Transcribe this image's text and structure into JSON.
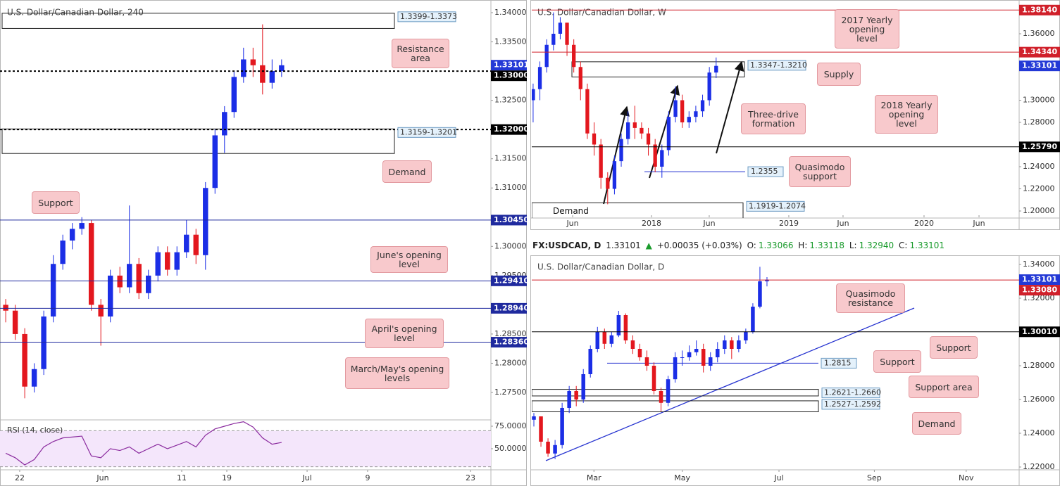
{
  "chart_data": [
    {
      "type": "candlestick",
      "title": "U.S. Dollar/Canadian Dollar, 240",
      "xlim": [
        -0.6,
        51
      ],
      "xticks": [
        {
          "value": 1.47,
          "label": "22"
        },
        {
          "value": 10.21,
          "label": "Jun"
        },
        {
          "value": 18.5,
          "label": "11"
        },
        {
          "value": 23.24,
          "label": "19"
        },
        {
          "value": 31.68,
          "label": "Jul"
        },
        {
          "value": 38.04,
          "label": "9"
        },
        {
          "value": 48.85,
          "label": "23"
        }
      ],
      "ylim": [
        1.270306,
        1.342167
      ],
      "yticks": [
        {
          "value": 1.34,
          "label": "1.34000"
        },
        {
          "value": 1.335,
          "label": "1.33500"
        },
        {
          "value": 1.325,
          "label": "1.32500"
        },
        {
          "value": 1.315,
          "label": "1.31500"
        },
        {
          "value": 1.31,
          "label": "1.31000"
        },
        {
          "value": 1.3,
          "label": "1.30000"
        },
        {
          "value": 1.295,
          "label": "1.29500"
        },
        {
          "value": 1.285,
          "label": "1.28500"
        },
        {
          "value": 1.28,
          "label": "1.28000"
        },
        {
          "value": 1.275,
          "label": "1.27500"
        }
      ],
      "up_color": "#1b2ee6",
      "down_color": "#e3171e",
      "open": [
        1.29,
        1.289,
        1.285,
        1.276,
        1.279,
        1.288,
        1.297,
        1.301,
        1.303,
        1.304,
        1.29,
        1.288,
        1.295,
        1.293,
        1.297,
        1.292,
        1.295,
        1.299,
        1.296,
        1.299,
        1.302,
        1.2985,
        1.31,
        1.319,
        1.323,
        1.329,
        1.332,
        1.331,
        1.328,
        1.33
      ],
      "high": [
        1.291,
        1.29,
        1.286,
        1.28,
        1.289,
        1.2985,
        1.302,
        1.304,
        1.305,
        1.3045,
        1.291,
        1.296,
        1.2965,
        1.307,
        1.298,
        1.296,
        1.3,
        1.3,
        1.3,
        1.3045,
        1.303,
        1.311,
        1.32,
        1.324,
        1.33,
        1.334,
        1.334,
        1.338,
        1.332,
        1.332
      ],
      "low": [
        1.287,
        1.284,
        1.274,
        1.275,
        1.278,
        1.287,
        1.296,
        1.2995,
        1.302,
        1.289,
        1.283,
        1.287,
        1.292,
        1.292,
        1.291,
        1.291,
        1.294,
        1.295,
        1.295,
        1.298,
        1.297,
        1.296,
        1.309,
        1.316,
        1.322,
        1.328,
        1.329,
        1.326,
        1.327,
        1.329
      ],
      "close": [
        1.289,
        1.285,
        1.276,
        1.279,
        1.288,
        1.297,
        1.301,
        1.303,
        1.304,
        1.29,
        1.288,
        1.295,
        1.293,
        1.297,
        1.292,
        1.295,
        1.299,
        1.296,
        1.299,
        1.302,
        1.2985,
        1.31,
        1.319,
        1.323,
        1.329,
        1.332,
        1.331,
        1.328,
        1.33,
        1.331
      ],
      "levels": [
        {
          "value": 1.33101,
          "color": "#2339d6",
          "style": "none"
        },
        {
          "value": 1.33,
          "label": "1.33000",
          "color": "#000000",
          "style": "dashed"
        },
        {
          "value": 1.32,
          "label": "1.32000",
          "color": "#000000",
          "style": "dashed"
        },
        {
          "value": 1.3045,
          "label": "1.30450",
          "color": "#1f2a9e",
          "style": "solid"
        },
        {
          "value": 1.2941,
          "label": "1.29410",
          "color": "#1f2a9e",
          "style": "solid"
        },
        {
          "value": 1.2894,
          "label": "1.28940",
          "color": "#1f2a9e",
          "style": "solid"
        },
        {
          "value": 1.2836,
          "label": "1.28360",
          "color": "#1f2a9e",
          "style": "solid"
        }
      ],
      "zones": [
        {
          "label": "1.3399-1.3373",
          "high": 1.3399,
          "low": 1.3373
        },
        {
          "label": "1.3159-1.3201",
          "high": 1.3201,
          "low": 1.3159
        }
      ],
      "annotations": [
        "Resistance area",
        "Demand",
        "Support",
        "June's opening level",
        "April's opening level",
        "March/May's opening levels"
      ],
      "rsi": {
        "title": "RSI (14, close)",
        "color": "#8a2a9e",
        "ylim": [
          27.34,
          82.03
        ],
        "yticks": [
          {
            "value": 75,
            "label": "75.0000"
          },
          {
            "value": 50,
            "label": "50.0000"
          }
        ],
        "bands": [
          30,
          70
        ],
        "values": [
          45,
          40,
          32,
          38,
          52,
          58,
          62,
          63,
          64,
          42,
          40,
          50,
          48,
          52,
          45,
          50,
          55,
          50,
          54,
          58,
          52,
          65,
          72,
          75,
          78,
          80,
          74,
          62,
          55,
          57
        ]
      }
    },
    {
      "type": "candlestick",
      "title": "U.S. Dollar/Canadian Dollar, W",
      "xlim": [
        -0.2,
        71.7
      ],
      "xticks": [
        {
          "value": 5.83,
          "label": "Jun"
        },
        {
          "value": 17.46,
          "label": "2018"
        },
        {
          "value": 25.98,
          "label": "Jun"
        },
        {
          "value": 37.72,
          "label": "2019"
        },
        {
          "value": 45.72,
          "label": "Jun"
        },
        {
          "value": 57.67,
          "label": "2020"
        },
        {
          "value": 65.78,
          "label": "Jun"
        }
      ],
      "ylim": [
        1.19365,
        1.39048
      ],
      "yticks": [
        {
          "value": 1.36,
          "label": "1.36000"
        },
        {
          "value": 1.3,
          "label": "1.30000"
        },
        {
          "value": 1.28,
          "label": "1.28000"
        },
        {
          "value": 1.24,
          "label": "1.24000"
        },
        {
          "value": 1.22,
          "label": "1.22000"
        },
        {
          "value": 1.2,
          "label": "1.20000"
        }
      ],
      "up_color": "#1b2ee6",
      "down_color": "#e3171e",
      "open": [
        1.3,
        1.31,
        1.33,
        1.35,
        1.36,
        1.37,
        1.35,
        1.33,
        1.31,
        1.27,
        1.26,
        1.23,
        1.22,
        1.245,
        1.265,
        1.28,
        1.275,
        1.27,
        1.26,
        1.24,
        1.255,
        1.285,
        1.3,
        1.28,
        1.285,
        1.29,
        1.3,
        1.325
      ],
      "high": [
        1.315,
        1.335,
        1.355,
        1.3793,
        1.375,
        1.37,
        1.355,
        1.335,
        1.315,
        1.28,
        1.265,
        1.235,
        1.25,
        1.27,
        1.29,
        1.295,
        1.28,
        1.275,
        1.265,
        1.26,
        1.29,
        1.3125,
        1.305,
        1.29,
        1.295,
        1.305,
        1.33,
        1.3386
      ],
      "low": [
        1.28,
        1.3,
        1.325,
        1.345,
        1.355,
        1.34,
        1.325,
        1.3,
        1.265,
        1.25,
        1.22,
        1.2061,
        1.215,
        1.24,
        1.26,
        1.265,
        1.265,
        1.25,
        1.235,
        1.23,
        1.25,
        1.28,
        1.275,
        1.275,
        1.28,
        1.285,
        1.295,
        1.32
      ],
      "close": [
        1.31,
        1.33,
        1.35,
        1.36,
        1.37,
        1.35,
        1.33,
        1.31,
        1.27,
        1.26,
        1.23,
        1.22,
        1.245,
        1.265,
        1.28,
        1.275,
        1.27,
        1.26,
        1.24,
        1.255,
        1.285,
        1.3,
        1.28,
        1.285,
        1.29,
        1.3,
        1.325,
        1.331
      ],
      "levels": [
        {
          "value": 1.3814,
          "label": "1.38140",
          "color": "#d0202a",
          "style": "solid"
        },
        {
          "value": 1.3434,
          "label": "1.34340",
          "color": "#d0202a",
          "style": "solid"
        },
        {
          "value": 1.33101,
          "color": "#2339d6",
          "style": "none"
        },
        {
          "value": 1.2579,
          "label": "1.25790",
          "color": "#000000",
          "style": "solid"
        }
      ],
      "zones": [
        {
          "label": "1.3347-1.3210",
          "high": 1.3347,
          "low": 1.321
        },
        {
          "label": "1.1919-1.2074",
          "high": 1.2074,
          "low": 1.1919,
          "note": "Demand"
        }
      ],
      "marked_lines": [
        1.2355
      ],
      "annotations": [
        "2017 Yearly opening level",
        "Supply",
        "Three-drive formation",
        "2018 Yearly opening level",
        "Quasimodo support"
      ]
    },
    {
      "type": "candlestick",
      "title": "U.S. Dollar/Canadian Dollar, D",
      "header": {
        "symbol": "FX:USDCAD, D",
        "last": "1.33101",
        "arrow": "▲",
        "change": "+0.00035 (+0.03%)",
        "open_label": "O:",
        "open": "1.33066",
        "high_label": "H:",
        "high": "1.33118",
        "low_label": "L:",
        "low": "1.32940",
        "close_label": "C:",
        "close": "1.33101"
      },
      "xlim": [
        -0.3,
        68.7
      ],
      "xticks": [
        {
          "value": 8.5,
          "label": "Mar"
        },
        {
          "value": 21,
          "label": "May"
        },
        {
          "value": 34.7,
          "label": "Jul"
        },
        {
          "value": 48.2,
          "label": "Sep"
        },
        {
          "value": 61.2,
          "label": "Nov"
        }
      ],
      "ylim": [
        1.21833,
        1.34458
      ],
      "yticks": [
        {
          "value": 1.34,
          "label": "1.34000"
        },
        {
          "value": 1.32,
          "label": "1.32000"
        },
        {
          "value": 1.28,
          "label": "1.28000"
        },
        {
          "value": 1.26,
          "label": "1.26000"
        },
        {
          "value": 1.24,
          "label": "1.24000"
        },
        {
          "value": 1.22,
          "label": "1.22000"
        }
      ],
      "up_color": "#1b2ee6",
      "down_color": "#e3171e",
      "open": [
        1.248,
        1.25,
        1.235,
        1.228,
        1.233,
        1.255,
        1.265,
        1.26,
        1.275,
        1.29,
        1.3,
        1.293,
        1.298,
        1.31,
        1.295,
        1.29,
        1.285,
        1.28,
        1.265,
        1.258,
        1.272,
        1.285,
        1.285,
        1.288,
        1.29,
        1.28,
        1.285,
        1.29,
        1.295,
        1.29,
        1.295,
        1.3,
        1.315,
        1.33
      ],
      "high": [
        1.252,
        1.25,
        1.237,
        1.236,
        1.258,
        1.268,
        1.268,
        1.278,
        1.292,
        1.303,
        1.302,
        1.3,
        1.3125,
        1.311,
        1.298,
        1.293,
        1.289,
        1.282,
        1.267,
        1.274,
        1.288,
        1.289,
        1.292,
        1.295,
        1.293,
        1.288,
        1.294,
        1.298,
        1.297,
        1.298,
        1.302,
        1.317,
        1.3386,
        1.3325
      ],
      "low": [
        1.244,
        1.232,
        1.226,
        1.2247,
        1.231,
        1.252,
        1.256,
        1.258,
        1.273,
        1.288,
        1.29,
        1.291,
        1.297,
        1.293,
        1.287,
        1.283,
        1.277,
        1.263,
        1.253,
        1.256,
        1.27,
        1.28,
        1.283,
        1.286,
        1.276,
        1.277,
        1.282,
        1.287,
        1.284,
        1.288,
        1.293,
        1.299,
        1.314,
        1.327
      ],
      "close": [
        1.25,
        1.235,
        1.228,
        1.233,
        1.255,
        1.265,
        1.26,
        1.275,
        1.29,
        1.3,
        1.293,
        1.298,
        1.31,
        1.295,
        1.29,
        1.285,
        1.28,
        1.265,
        1.258,
        1.272,
        1.285,
        1.285,
        1.288,
        1.29,
        1.28,
        1.285,
        1.29,
        1.295,
        1.29,
        1.295,
        1.3,
        1.315,
        1.33,
        1.331
      ],
      "levels": [
        {
          "value": 1.33101,
          "color": "#2339d6",
          "style": "none"
        },
        {
          "value": 1.3308,
          "label": "1.33080",
          "color": "#d0202a",
          "style": "solid"
        },
        {
          "value": 1.3001,
          "label": "1.30010",
          "color": "#000000",
          "style": "solid"
        }
      ],
      "zones": [
        {
          "label": "1.2621-1.2660",
          "high": 1.266,
          "low": 1.2621
        },
        {
          "label": "1.2527-1.2592",
          "high": 1.2592,
          "low": 1.2527
        }
      ],
      "marked_lines": [
        1.2815
      ],
      "annotations": [
        "Quasimodo resistance",
        "Support",
        "Support",
        "Support area",
        "Demand"
      ]
    }
  ]
}
